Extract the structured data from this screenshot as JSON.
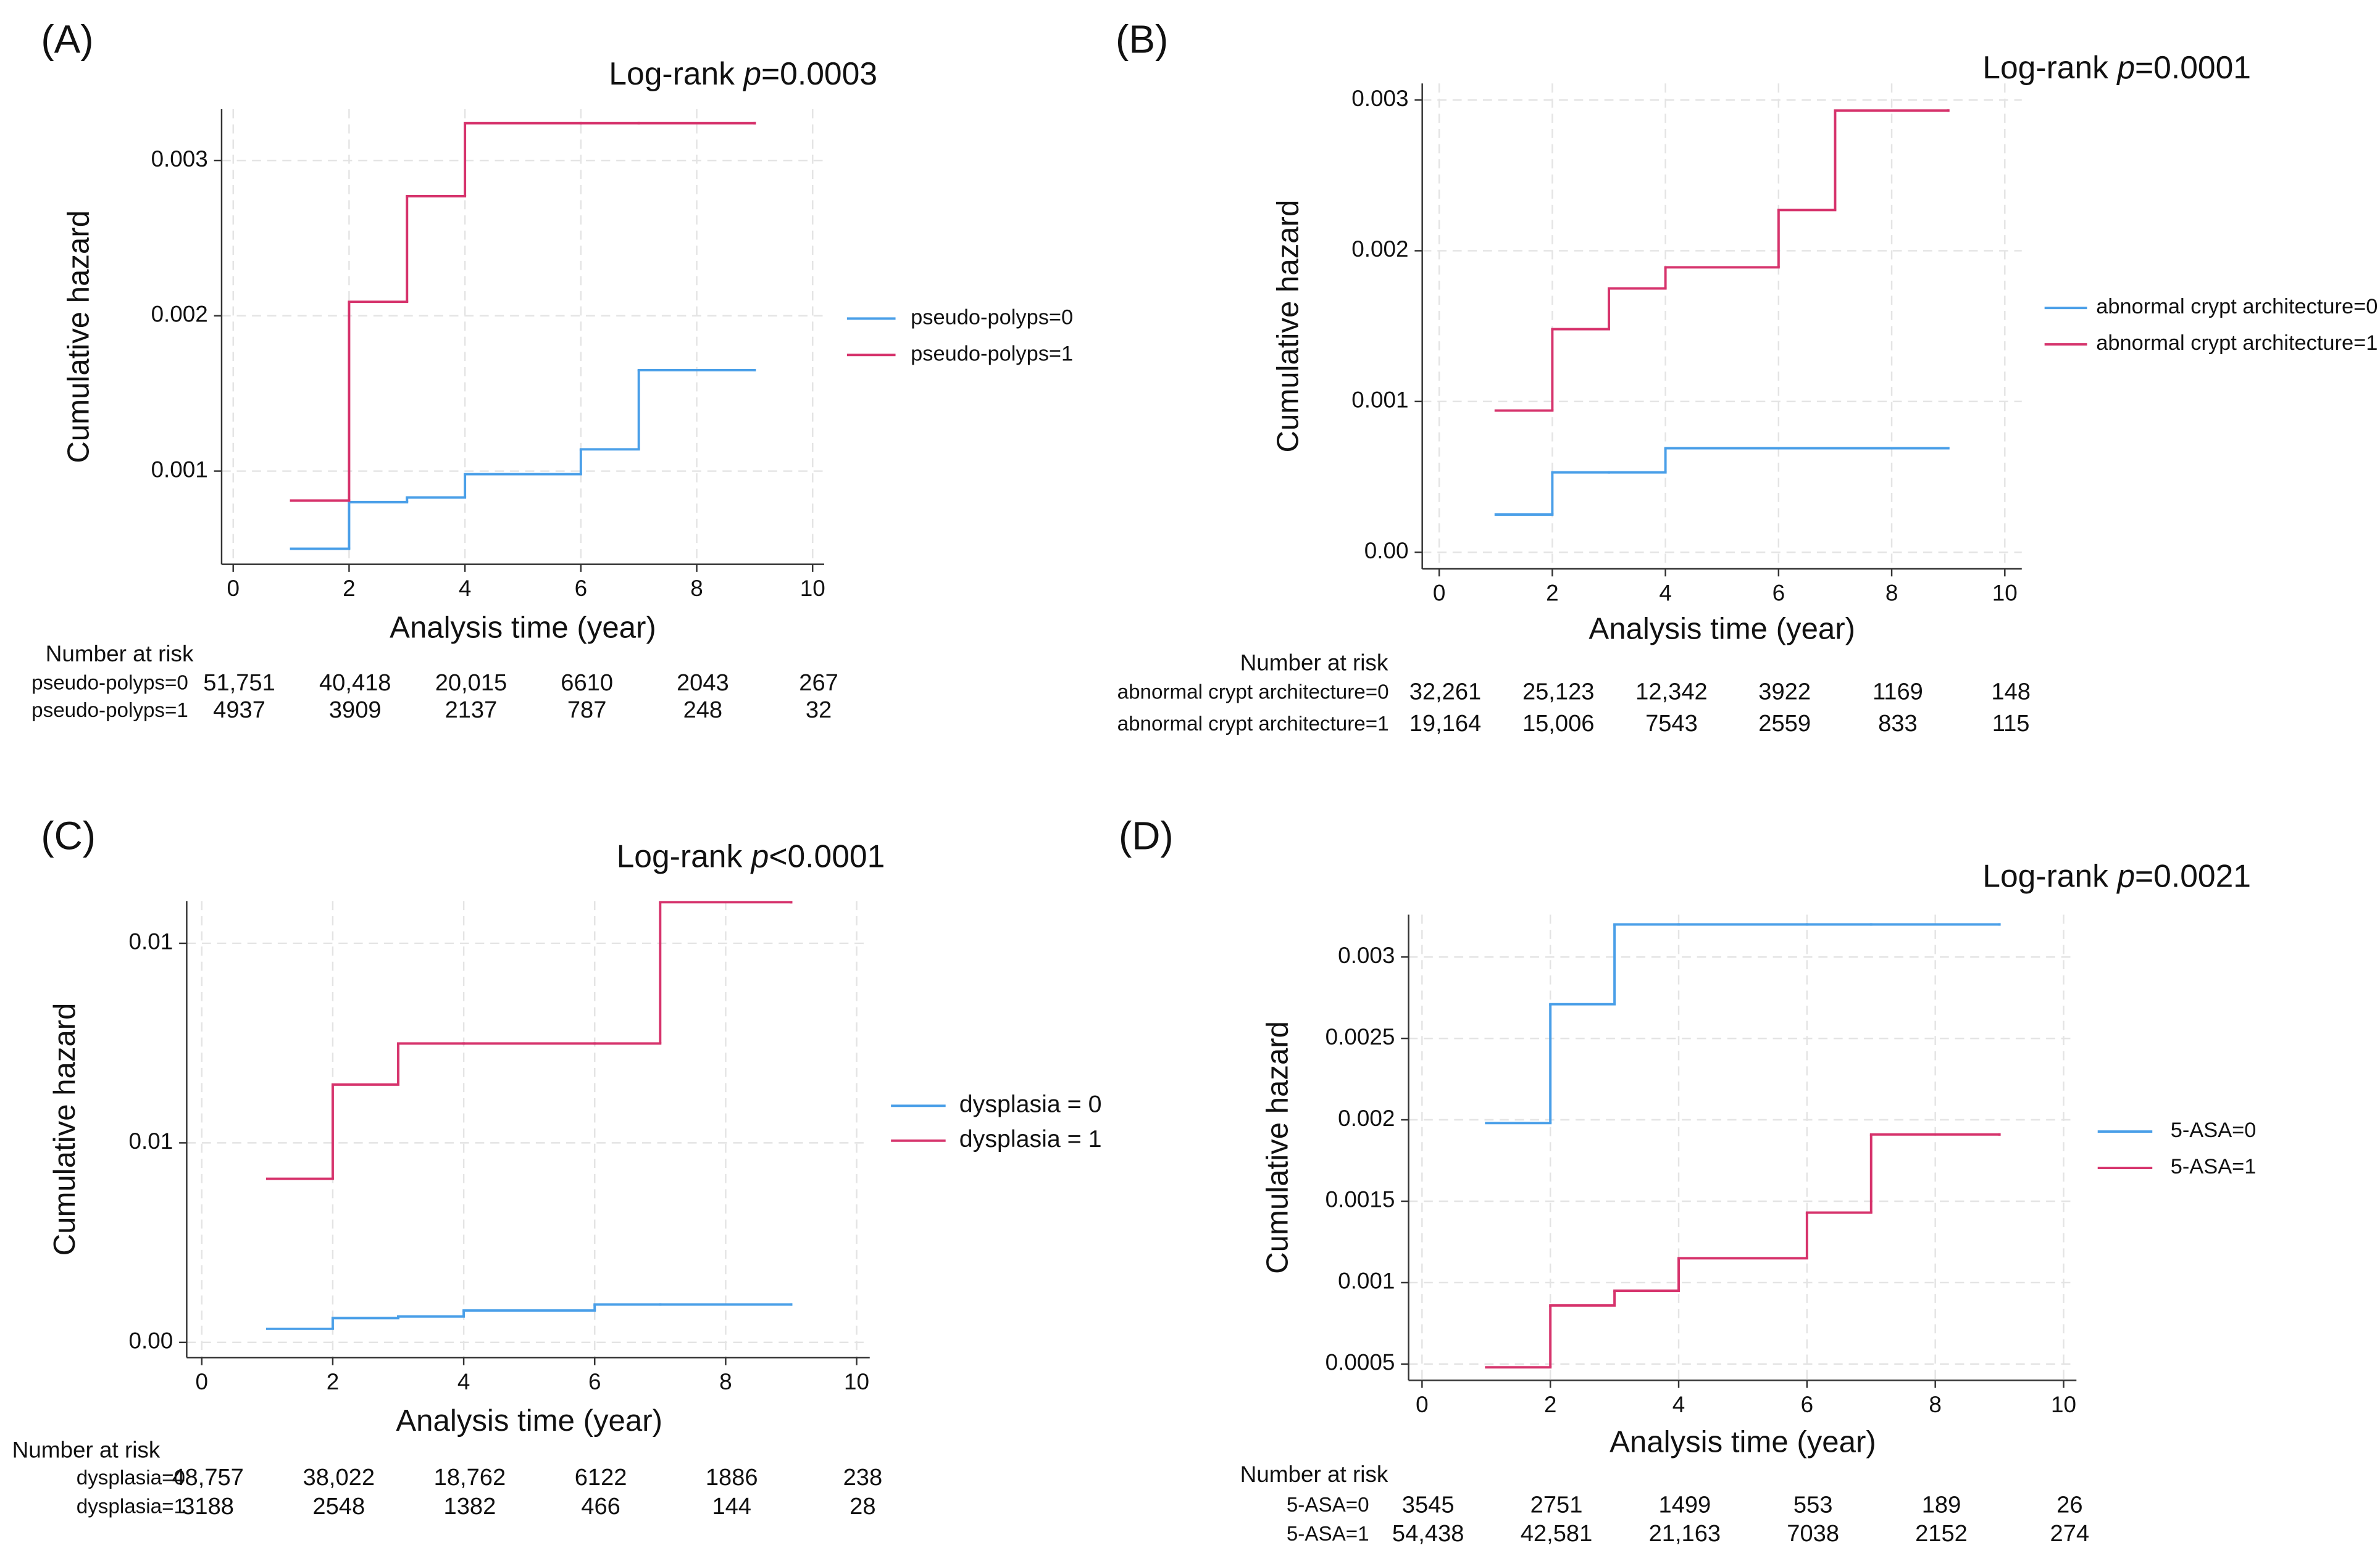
{
  "chart_data": [
    {
      "type": "step",
      "panel": "(A)",
      "annotation": [
        "Log-rank ",
        "p",
        "=0.0003"
      ],
      "x_label": "Analysis time (year)",
      "y_label": "Cumulative hazard",
      "x": [
        1,
        2,
        3,
        4,
        6,
        7,
        9
      ],
      "series": [
        {
          "name": "pseudo-polyps=0",
          "color": "#4a9fe8",
          "values": [
            0.0005,
            0.0008,
            0.00083,
            0.00098,
            0.00114,
            0.00165,
            0.00165
          ]
        },
        {
          "name": "pseudo-polyps=1",
          "color": "#d6336c",
          "values": [
            0.00081,
            0.00209,
            0.00277,
            0.00324,
            0.00324,
            0.00324,
            0.00324
          ]
        }
      ],
      "xlim": [
        -0.2,
        10.2
      ],
      "xticks": [
        0,
        2,
        4,
        6,
        8,
        10
      ],
      "ylim": [
        0.0004,
        0.00333
      ],
      "yticks": [
        0.001,
        0.002,
        0.003
      ],
      "grid": true,
      "risk_table": {
        "title": "Number at risk",
        "rows": [
          {
            "label": "pseudo-polyps=0",
            "values": [
              "51,751",
              "40,418",
              "20,015",
              "6610",
              "2043",
              "267"
            ]
          },
          {
            "label": "pseudo-polyps=1",
            "values": [
              "4937",
              "3909",
              "2137",
              "787",
              "248",
              "32"
            ]
          }
        ]
      }
    },
    {
      "type": "step",
      "panel": "(B)",
      "annotation": [
        "Log-rank ",
        "p",
        "=0.0001"
      ],
      "x_label": "Analysis time (year)",
      "y_label": "Cumulative hazard",
      "x": [
        1,
        2,
        3,
        4,
        6,
        7,
        9
      ],
      "series": [
        {
          "name": "abnormal crypt architecture=0",
          "color": "#4a9fe8",
          "values": [
            0.00025,
            0.00053,
            0.00053,
            0.00069,
            0.00069,
            0.00069,
            0.00069
          ]
        },
        {
          "name": "abnormal crypt architecture=1",
          "color": "#d6336c",
          "values": [
            0.00094,
            0.00148,
            0.00175,
            0.00189,
            0.00227,
            0.00293,
            0.00293
          ]
        }
      ],
      "xlim": [
        -0.3,
        10.3
      ],
      "xticks": [
        0,
        2,
        4,
        6,
        8,
        10
      ],
      "ylim": [
        -0.00011,
        0.00311
      ],
      "yticks": [
        {
          "value": 0,
          "label": "0.00"
        },
        0.001,
        0.002,
        0.003
      ],
      "grid": true,
      "risk_table": {
        "title": "Number at risk",
        "rows": [
          {
            "label": "abnormal crypt architecture=0",
            "values": [
              "32,261",
              "25,123",
              "12,342",
              "3922",
              "1169",
              "148"
            ]
          },
          {
            "label": "abnormal crypt architecture=1",
            "values": [
              "19,164",
              "15,006",
              "7543",
              "2559",
              "833",
              "115"
            ]
          }
        ]
      }
    },
    {
      "type": "step",
      "panel": "(C)",
      "annotation": [
        "Log-rank ",
        "p",
        "<0.0001"
      ],
      "x_label": "Analysis time (year)",
      "y_label": "Cumulative hazard",
      "x": [
        1,
        2,
        3,
        4,
        6,
        7,
        9
      ],
      "series": [
        {
          "name": "dysplasia = 0",
          "color": "#4a9fe8",
          "values": [
            0.00034,
            0.00061,
            0.00065,
            0.0008,
            0.00095,
            0.00095,
            0.00095
          ]
        },
        {
          "name": "dysplasia = 1",
          "color": "#d6336c",
          "values": [
            0.0041,
            0.00646,
            0.00749,
            0.00749,
            0.00749,
            0.01103,
            0.01103
          ]
        }
      ],
      "xlim": [
        -0.23,
        10.2
      ],
      "xticks": [
        0,
        2,
        4,
        6,
        8,
        10
      ],
      "ylim": [
        -0.00038,
        0.01106
      ],
      "yticks": [
        {
          "value": 0,
          "label": "0.00"
        },
        {
          "value": 0.005,
          "label": "0.01"
        },
        0.01
      ],
      "grid": true,
      "risk_table": {
        "title": "Number at risk",
        "rows": [
          {
            "label": "dysplasia=0",
            "values": [
              "48,757",
              "38,022",
              "18,762",
              "6122",
              "1886",
              "238"
            ]
          },
          {
            "label": "dysplasia=1",
            "values": [
              "3188",
              "2548",
              "1382",
              "466",
              "144",
              "28"
            ]
          }
        ]
      }
    },
    {
      "type": "step",
      "panel": "(D)",
      "annotation": [
        "Log-rank ",
        "p",
        "=0.0021"
      ],
      "x_label": "Analysis time (year)",
      "y_label": "Cumulative hazard",
      "x": [
        1,
        2,
        3,
        4,
        6,
        7,
        9
      ],
      "series": [
        {
          "name": "5-ASA=0",
          "color": "#4a9fe8",
          "values": [
            0.00198,
            0.00271,
            0.0032,
            0.0032,
            0.0032,
            0.0032,
            0.0032
          ]
        },
        {
          "name": "5-ASA=1",
          "color": "#d6336c",
          "values": [
            0.00048,
            0.00086,
            0.00095,
            0.00115,
            0.00143,
            0.00191,
            0.00191
          ]
        }
      ],
      "xlim": [
        -0.21,
        10.2
      ],
      "xticks": [
        0,
        2,
        4,
        6,
        8,
        10
      ],
      "ylim": [
        0.0004,
        0.00326
      ],
      "yticks": [
        0.0005,
        0.001,
        0.0015,
        0.002,
        0.0025,
        0.003
      ],
      "grid": true,
      "risk_table": {
        "title": "Number at risk",
        "rows": [
          {
            "label": "5-ASA=0",
            "values": [
              "3545",
              "2751",
              "1499",
              "553",
              "189",
              "26"
            ]
          },
          {
            "label": "5-ASA=1",
            "values": [
              "54,438",
              "42,581",
              "21,163",
              "7038",
              "2152",
              "274"
            ]
          }
        ]
      }
    }
  ]
}
